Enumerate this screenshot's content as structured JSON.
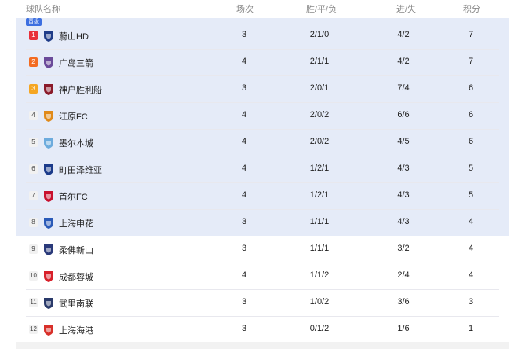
{
  "header": {
    "team": "球队名称",
    "played": "场次",
    "wdl": "胜/平/负",
    "goals": "进/失",
    "points": "积分"
  },
  "promotion_badge": "晋级",
  "promotion_color": "#3d6fe0",
  "highlight_color": "#e5ebf8",
  "rows": [
    {
      "rank": "1",
      "team": "蔚山HD",
      "played": "3",
      "wdl": "2/1/0",
      "goals": "4/2",
      "points": "7",
      "logo_color": "#1f3c88"
    },
    {
      "rank": "2",
      "team": "广岛三箭",
      "played": "4",
      "wdl": "2/1/1",
      "goals": "4/2",
      "points": "7",
      "logo_color": "#6a4a9a"
    },
    {
      "rank": "3",
      "team": "神户胜利船",
      "played": "3",
      "wdl": "2/0/1",
      "goals": "7/4",
      "points": "6",
      "logo_color": "#8a1a2a"
    },
    {
      "rank": "4",
      "team": "江原FC",
      "played": "4",
      "wdl": "2/0/2",
      "goals": "6/6",
      "points": "6",
      "logo_color": "#e08a1a"
    },
    {
      "rank": "5",
      "team": "墨尔本城",
      "played": "4",
      "wdl": "2/0/2",
      "goals": "4/5",
      "points": "6",
      "logo_color": "#6cabdd"
    },
    {
      "rank": "6",
      "team": "町田泽维亚",
      "played": "4",
      "wdl": "1/2/1",
      "goals": "4/3",
      "points": "5",
      "logo_color": "#1a3a8a"
    },
    {
      "rank": "7",
      "team": "首尔FC",
      "played": "4",
      "wdl": "1/2/1",
      "goals": "4/3",
      "points": "5",
      "logo_color": "#c8102e"
    },
    {
      "rank": "8",
      "team": "上海申花",
      "played": "3",
      "wdl": "1/1/1",
      "goals": "4/3",
      "points": "4",
      "logo_color": "#2a5ab8"
    },
    {
      "rank": "9",
      "team": "柔佛新山",
      "played": "3",
      "wdl": "1/1/1",
      "goals": "3/2",
      "points": "4",
      "logo_color": "#2a3a7a"
    },
    {
      "rank": "10",
      "team": "成都蓉城",
      "played": "4",
      "wdl": "1/1/2",
      "goals": "2/4",
      "points": "4",
      "logo_color": "#d8202a"
    },
    {
      "rank": "11",
      "team": "武里南联",
      "played": "3",
      "wdl": "1/0/2",
      "goals": "3/6",
      "points": "3",
      "logo_color": "#2a3a6a"
    },
    {
      "rank": "12",
      "team": "上海海港",
      "played": "3",
      "wdl": "0/1/2",
      "goals": "1/6",
      "points": "1",
      "logo_color": "#d8302a"
    }
  ]
}
